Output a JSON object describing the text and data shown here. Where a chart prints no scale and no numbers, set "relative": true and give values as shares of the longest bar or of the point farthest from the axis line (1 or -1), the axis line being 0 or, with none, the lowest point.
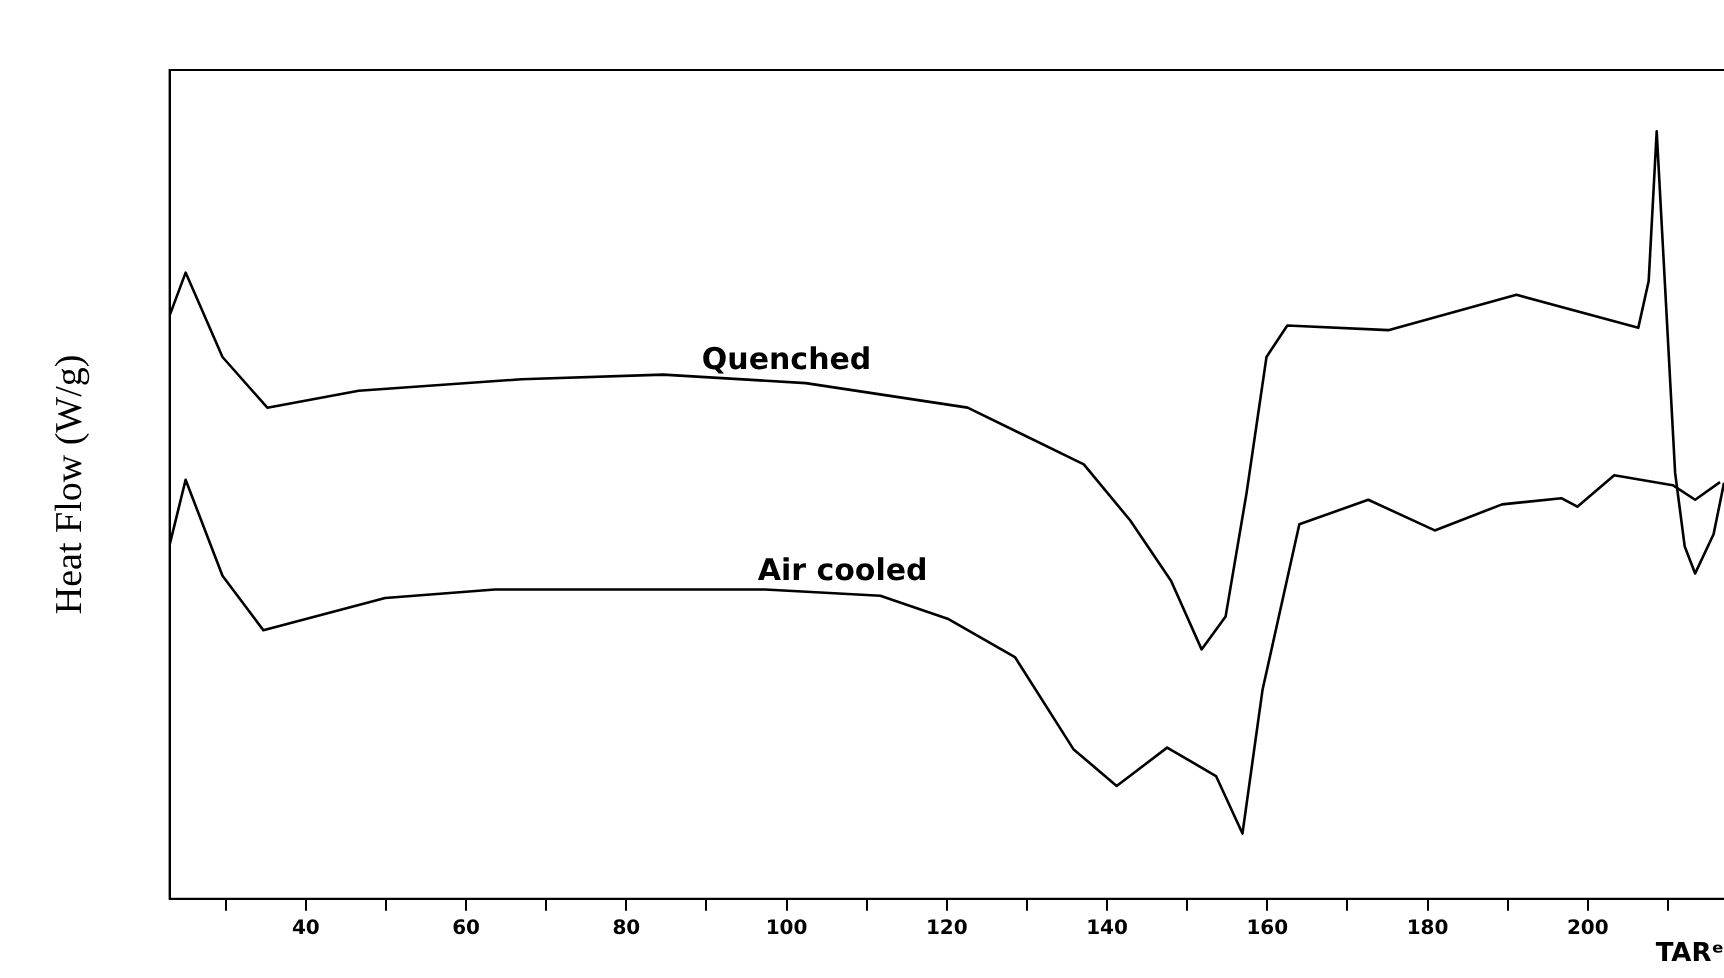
{
  "chart_data": {
    "type": "line",
    "relative": true,
    "xlabel": "TARᵉ",
    "ylabel": "Heat Flow (W/g)",
    "xlim": [
      23,
      217
    ],
    "xticks": [
      {
        "value": 30,
        "label": null
      },
      40,
      {
        "value": 50,
        "label": null
      },
      60,
      {
        "value": 70,
        "label": null
      },
      80,
      {
        "value": 90,
        "label": null
      },
      100,
      {
        "value": 110,
        "label": null
      },
      120,
      {
        "value": 130,
        "label": null
      },
      140,
      {
        "value": 150,
        "label": null
      },
      160,
      {
        "value": 170,
        "label": null
      },
      180,
      {
        "value": 190,
        "label": null
      },
      200,
      {
        "value": 210,
        "label": null
      }
    ],
    "grid": false,
    "legend": false,
    "marker": "none",
    "line_style": "solid",
    "series": [
      {
        "name": "Quenched",
        "color": "#000000",
        "x": [
          23,
          25.0,
          29.6,
          35.2,
          46.6,
          66.9,
          84.6,
          102.4,
          122.6,
          137.1,
          142.9,
          148.0,
          151.8,
          154.8,
          157.4,
          159.9,
          162.5,
          175.1,
          191.1,
          206.3,
          207.6,
          208.6,
          210.9,
          212.1,
          213.4,
          215.7,
          217
        ],
        "values": [
          0.76,
          0.816,
          0.706,
          0.64,
          0.662,
          0.677,
          0.683,
          0.672,
          0.64,
          0.566,
          0.493,
          0.414,
          0.325,
          0.368,
          0.528,
          0.706,
          0.747,
          0.741,
          0.787,
          0.744,
          0.805,
          1.0,
          0.555,
          0.459,
          0.424,
          0.475,
          0.542
        ]
      },
      {
        "name": "Air cooled",
        "color": "#000000",
        "x": [
          23,
          25.0,
          29.6,
          34.7,
          49.9,
          63.6,
          97.3,
          111.7,
          120.1,
          128.5,
          135.8,
          141.2,
          147.5,
          153.6,
          156.9,
          159.4,
          164.0,
          172.6,
          180.9,
          189.3,
          196.7,
          198.7,
          203.3,
          210.6,
          213.4,
          216.5
        ],
        "values": [
          0.461,
          0.546,
          0.421,
          0.35,
          0.392,
          0.403,
          0.403,
          0.395,
          0.365,
          0.315,
          0.195,
          0.147,
          0.197,
          0.16,
          0.085,
          0.272,
          0.488,
          0.52,
          0.48,
          0.514,
          0.522,
          0.511,
          0.552,
          0.539,
          0.52,
          0.543
        ]
      }
    ]
  }
}
